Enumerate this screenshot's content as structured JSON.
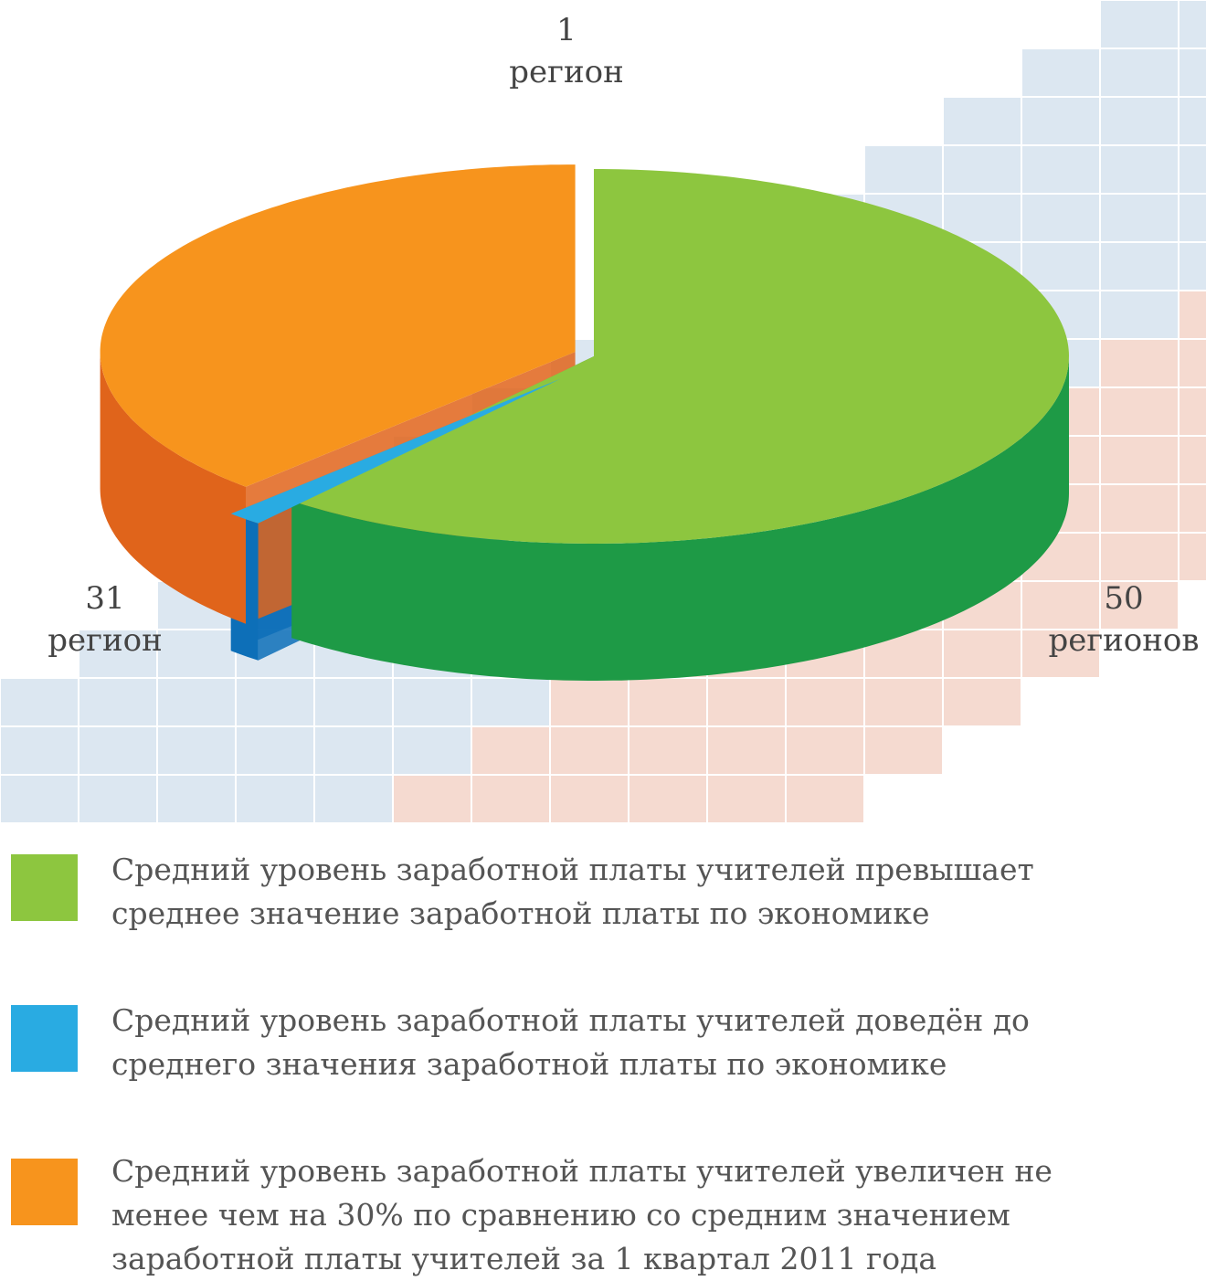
{
  "chart_data": {
    "type": "pie3d",
    "values": [
      50,
      1,
      31
    ],
    "value_labels": [
      "50\nрегионов",
      "1\nрегион",
      "31\nрегион"
    ],
    "colors": [
      "#8dc63f",
      "#29abe2",
      "#f7941d"
    ],
    "side_colors": [
      "#1e9a46",
      "#0d6fb8",
      "#e0641b"
    ],
    "labels": [
      "Средний уровень заработной платы учителей превышает среднее значение заработной платы по экономике",
      "Средний уровень заработной платы учителей доведён до среднего значения заработной платы по экономике",
      "Средний уровень заработной платы учителей увеличен не менее чем на 30% по сравнению со средним значением заработной платы учителей за 1 квартал 2011 года"
    ]
  }
}
